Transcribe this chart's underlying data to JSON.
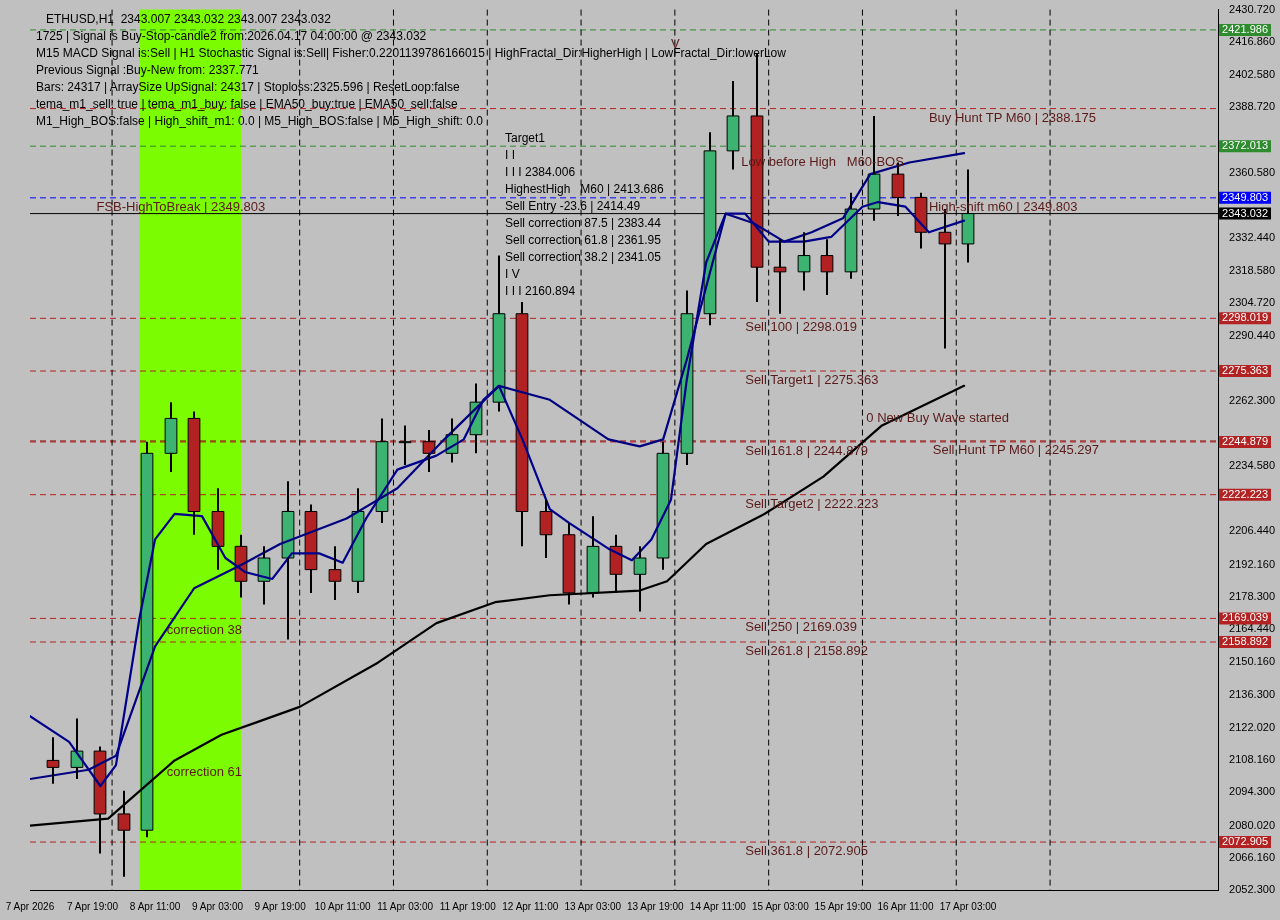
{
  "chart_data": {
    "type": "candlestick",
    "title": "ETHUSD,H1  2343.007 2343.032 2343.007 2343.032",
    "annotations": [
      "1725 | Signal is Buy-Stop-candle2 from:2026.04.17 04:00:00 @ 2343.032",
      "M15 MACD Signal is:Sell | H1 Stochastic Signal is:Sell| Fisher:0.2201139786166015 | HighFractal_Dir:HigherHigh | LowFractal_Dir:lowerLow",
      "Previous Signal :Buy-New from: 2337.771",
      "Bars: 24317 | ArraySize UpSignal: 24317 | Stoploss:2325.596 | ResetLoop:false",
      "tema_m1_sell: true | tema_m1_buy: false | EMA50_buy:true | EMA50_sell:false",
      "M1_High_BOS:false | High_shift_m1: 0.0 | M5_High_BOS:false | M5_High_shift: 0.0",
      "Target1",
      {
        "text": "FSB-HighToBreak | 2349.803",
        "x": "2026-04-07T20:00",
        "y": 2349.803
      },
      "I I",
      {
        "text": "V",
        "x": "2026-04-13T23:00",
        "y": 2420
      },
      "I I I 2384.006",
      "HighestHigh   M60 | 2413.686",
      "Sell Entry -23.6 | 2414.49",
      {
        "text": "Buy Hunt TP M60 | 2388.175",
        "x": "2026-04-16T17:00",
        "y": 2388.175
      },
      "Sell correction 87.5 | 2383.44",
      {
        "text": "Low before High   M60-BOS",
        "x": "2026-04-14T17:00",
        "y": 2369
      },
      "Sell correction 61.8 | 2361.95",
      {
        "text": "High-shift m60 | 2349.803",
        "x": "2026-04-16T17:00",
        "y": 2349.803
      },
      "Sell correction 38.2 | 2341.05",
      {
        "text": "Sell 100 | 2298.019",
        "x": "2026-04-14T18:00",
        "y": 2298.019
      },
      {
        "text": "Sell Target1 | 2275.363",
        "x": "2026-04-14T18:00",
        "y": 2275.363
      },
      {
        "text": "0 New Buy Wave started",
        "x": "2026-04-16T01:00",
        "y": 2259
      },
      {
        "text": "Sell Hunt TP M60 | 2245.297",
        "x": "2026-04-16T18:00",
        "y": 2245.297
      },
      {
        "text": "Sell 161.8 | 2244.879",
        "x": "2026-04-14T18:00",
        "y": 2244.879
      },
      {
        "text": "Sell Target2 | 2222.223",
        "x": "2026-04-14T18:00",
        "y": 2222.223
      },
      {
        "text": "correction 38",
        "x": "2026-04-08T14:00",
        "y": 2168
      },
      {
        "text": "Sell 250 | 2169.039",
        "x": "2026-04-14T18:00",
        "y": 2169.039
      },
      {
        "text": "Sell 261.8 | 2158.892",
        "x": "2026-04-14T18:00",
        "y": 2158.892
      },
      "I V",
      "I I I 2160.894",
      {
        "text": "correction 61",
        "x": "2026-04-08T14:00",
        "y": 2107
      },
      {
        "text": "Sell 361.8 | 2072.905",
        "x": "2026-04-14T18:00",
        "y": 2072.905
      }
    ],
    "x": [
      "2026-04-07T09:00",
      "2026-04-07T15:00",
      "2026-04-07T21:00",
      "2026-04-08T03:00",
      "2026-04-08T09:00",
      "2026-04-08T15:00",
      "2026-04-08T21:00",
      "2026-04-09T03:00",
      "2026-04-09T09:00",
      "2026-04-09T15:00",
      "2026-04-09T21:00",
      "2026-04-10T03:00",
      "2026-04-10T09:00",
      "2026-04-10T15:00",
      "2026-04-10T21:00",
      "2026-04-11T03:00",
      "2026-04-11T09:00",
      "2026-04-11T15:00",
      "2026-04-11T21:00",
      "2026-04-12T03:00",
      "2026-04-12T09:00",
      "2026-04-12T15:00",
      "2026-04-12T21:00",
      "2026-04-13T03:00",
      "2026-04-13T09:00",
      "2026-04-13T15:00",
      "2026-04-13T21:00",
      "2026-04-14T03:00",
      "2026-04-14T09:00",
      "2026-04-14T15:00",
      "2026-04-14T21:00",
      "2026-04-15T03:00",
      "2026-04-15T09:00",
      "2026-04-15T15:00",
      "2026-04-15T21:00",
      "2026-04-16T03:00",
      "2026-04-16T09:00",
      "2026-04-16T15:00",
      "2026-04-16T21:00",
      "2026-04-17T03:00"
    ],
    "ohlc": [
      [
        2108,
        2118,
        2098,
        2105
      ],
      [
        2105,
        2126,
        2100,
        2112
      ],
      [
        2112,
        2114,
        2068,
        2085
      ],
      [
        2085,
        2095,
        2058,
        2078
      ],
      [
        2078,
        2245,
        2075,
        2240
      ],
      [
        2240,
        2262,
        2232,
        2255
      ],
      [
        2255,
        2258,
        2205,
        2215
      ],
      [
        2215,
        2225,
        2190,
        2200
      ],
      [
        2200,
        2205,
        2178,
        2185
      ],
      [
        2185,
        2200,
        2175,
        2195
      ],
      [
        2195,
        2228,
        2160,
        2215
      ],
      [
        2215,
        2218,
        2180,
        2190
      ],
      [
        2190,
        2200,
        2177,
        2185
      ],
      [
        2185,
        2225,
        2180,
        2215
      ],
      [
        2215,
        2255,
        2210,
        2245
      ],
      [
        2245,
        2252,
        2235,
        2245
      ],
      [
        2245,
        2250,
        2232,
        2240
      ],
      [
        2240,
        2255,
        2236,
        2248
      ],
      [
        2248,
        2270,
        2240,
        2262
      ],
      [
        2262,
        2325,
        2258,
        2300
      ],
      [
        2300,
        2305,
        2200,
        2215
      ],
      [
        2215,
        2220,
        2195,
        2205
      ],
      [
        2205,
        2210,
        2175,
        2180
      ],
      [
        2180,
        2213,
        2178,
        2200
      ],
      [
        2200,
        2205,
        2180,
        2188
      ],
      [
        2188,
        2200,
        2172,
        2195
      ],
      [
        2195,
        2245,
        2190,
        2240
      ],
      [
        2240,
        2310,
        2235,
        2300
      ],
      [
        2300,
        2378,
        2295,
        2370
      ],
      [
        2370,
        2400,
        2362,
        2385
      ],
      [
        2385,
        2412,
        2305,
        2320
      ],
      [
        2320,
        2332,
        2300,
        2318
      ],
      [
        2318,
        2335,
        2310,
        2325
      ],
      [
        2325,
        2332,
        2308,
        2318
      ],
      [
        2318,
        2352,
        2315,
        2345
      ],
      [
        2345,
        2385,
        2340,
        2360
      ],
      [
        2360,
        2365,
        2342,
        2350
      ],
      [
        2350,
        2352,
        2328,
        2335
      ],
      [
        2335,
        2345,
        2285,
        2330
      ],
      [
        2330,
        2362,
        2322,
        2343.032
      ]
    ],
    "series": [
      {
        "type": "line",
        "color": "#000000",
        "x": [
          "2026-04-07T03:00",
          "2026-04-07T23:00",
          "2026-04-08T16:00",
          "2026-04-09T04:00",
          "2026-04-10T00:00",
          "2026-04-10T20:00",
          "2026-04-11T11:00",
          "2026-04-12T02:00",
          "2026-04-12T16:00",
          "2026-04-13T15:00",
          "2026-04-13T22:00",
          "2026-04-14T08:00",
          "2026-04-14T23:00",
          "2026-04-15T14:00",
          "2026-04-16T05:00",
          "2026-04-17T02:00"
        ],
        "values": [
          2080,
          2083,
          2108,
          2119,
          2131,
          2150,
          2167,
          2176,
          2179,
          2181,
          2185,
          2201,
          2214,
          2230,
          2252,
          2269
        ]
      },
      {
        "type": "line",
        "color": "#00008b",
        "x": [
          "2026-04-07T03:00",
          "2026-04-07T13:00",
          "2026-04-07T21:00",
          "2026-04-08T01:00",
          "2026-04-08T07:00",
          "2026-04-08T11:00",
          "2026-04-08T16:00",
          "2026-04-08T23:00",
          "2026-04-09T05:00",
          "2026-04-09T10:00",
          "2026-04-09T17:00",
          "2026-04-09T22:00",
          "2026-04-10T05:00",
          "2026-04-10T11:00",
          "2026-04-10T17:00",
          "2026-04-11T01:00",
          "2026-04-11T11:00",
          "2026-04-11T18:00",
          "2026-04-11T23:00",
          "2026-04-12T03:00",
          "2026-04-12T09:00",
          "2026-04-12T16:00",
          "2026-04-12T21:00",
          "2026-04-13T07:00",
          "2026-04-13T13:00",
          "2026-04-13T18:00",
          "2026-04-13T23:00",
          "2026-04-14T03:00",
          "2026-04-14T08:00",
          "2026-04-14T13:00",
          "2026-04-14T18:00",
          "2026-04-15T00:00",
          "2026-04-15T09:00",
          "2026-04-15T16:00",
          "2026-04-16T00:00",
          "2026-04-16T04:00",
          "2026-04-16T11:00",
          "2026-04-16T17:00",
          "2026-04-17T02:00"
        ],
        "values": [
          2127,
          2116,
          2097,
          2106,
          2169,
          2203,
          2214,
          2213,
          2195,
          2189,
          2186,
          2197,
          2197,
          2193,
          2212,
          2233,
          2239,
          2246,
          2263,
          2269,
          2246,
          2216,
          2210,
          2199,
          2194,
          2203,
          2220,
          2271,
          2322,
          2343,
          2343,
          2331,
          2331,
          2333,
          2346,
          2348,
          2346,
          2335,
          2340
        ]
      },
      {
        "type": "line",
        "color": "#000080",
        "x": [
          "2026-04-07T03:00",
          "2026-04-07T18:00",
          "2026-04-08T01:00",
          "2026-04-08T11:00",
          "2026-04-08T21:00",
          "2026-04-09T09:00",
          "2026-04-09T19:00",
          "2026-04-10T12:00",
          "2026-04-11T01:00",
          "2026-04-11T13:00",
          "2026-04-12T03:00",
          "2026-04-12T16:00",
          "2026-04-13T07:00",
          "2026-04-13T15:00",
          "2026-04-13T21:00",
          "2026-04-14T03:00",
          "2026-04-14T13:00",
          "2026-04-14T20:00",
          "2026-04-15T04:00",
          "2026-04-15T11:00",
          "2026-04-15T19:00",
          "2026-04-16T02:00",
          "2026-04-16T12:00",
          "2026-04-17T02:00"
        ],
        "values": [
          2100,
          2104,
          2110,
          2157,
          2182,
          2192,
          2201,
          2212,
          2225,
          2246,
          2269,
          2263,
          2246,
          2243,
          2246,
          2280,
          2343,
          2339,
          2331,
          2335,
          2341,
          2360,
          2365,
          2369
        ]
      }
    ],
    "xlim": [
      "2026-04-07T03:00",
      "2026-04-19T19:00"
    ],
    "xticks": [
      {
        "value": "2026-04-07T03:00",
        "label": "7 Apr 2026"
      },
      {
        "value": "2026-04-07T19:00",
        "label": "7 Apr 19:00"
      },
      {
        "value": "2026-04-08T11:00",
        "label": "8 Apr 11:00"
      },
      {
        "value": "2026-04-09T03:00",
        "label": "9 Apr 03:00"
      },
      {
        "value": "2026-04-09T19:00",
        "label": "9 Apr 19:00"
      },
      {
        "value": "2026-04-10T11:00",
        "label": "10 Apr 11:00"
      },
      {
        "value": "2026-04-11T03:00",
        "label": "11 Apr 03:00"
      },
      {
        "value": "2026-04-11T19:00",
        "label": "11 Apr 19:00"
      },
      {
        "value": "2026-04-12T11:00",
        "label": "12 Apr 11:00"
      },
      {
        "value": "2026-04-13T03:00",
        "label": "13 Apr 03:00"
      },
      {
        "value": "2026-04-13T19:00",
        "label": "13 Apr 19:00"
      },
      {
        "value": "2026-04-14T11:00",
        "label": "14 Apr 11:00"
      },
      {
        "value": "2026-04-15T03:00",
        "label": "15 Apr 03:00"
      },
      {
        "value": "2026-04-15T19:00",
        "label": "15 Apr 19:00"
      },
      {
        "value": "2026-04-16T11:00",
        "label": "16 Apr 11:00"
      },
      {
        "value": "2026-04-17T03:00",
        "label": "17 Apr 03:00"
      }
    ],
    "ylim": [
      2052.3,
      2430.72
    ],
    "yticks": [
      {
        "value": 2052.3,
        "label": "2052.300"
      },
      {
        "value": 2066.16,
        "label": "2066.160"
      },
      {
        "value": 2080.02,
        "label": "2080.020"
      },
      {
        "value": 2094.3,
        "label": "2094.300"
      },
      {
        "value": 2108.16,
        "label": "2108.160"
      },
      {
        "value": 2122.02,
        "label": "2122.020"
      },
      {
        "value": 2136.3,
        "label": "2136.300"
      },
      {
        "value": 2150.16,
        "label": "2150.160"
      },
      {
        "value": 2164.44,
        "label": "2164.440"
      },
      {
        "value": 2178.3,
        "label": "2178.300"
      },
      {
        "value": 2192.16,
        "label": "2192.160"
      },
      {
        "value": 2206.44,
        "label": "2206.440"
      },
      {
        "value": 2234.58,
        "label": "2234.580"
      },
      {
        "value": 2262.3,
        "label": "2262.300"
      },
      {
        "value": 2290.44,
        "label": "2290.440"
      },
      {
        "value": 2304.72,
        "label": "2304.720"
      },
      {
        "value": 2318.58,
        "label": "2318.580"
      },
      {
        "value": 2332.44,
        "label": "2332.440"
      },
      {
        "value": 2360.58,
        "label": "2360.580"
      },
      {
        "value": 2388.72,
        "label": "2388.720"
      },
      {
        "value": 2402.58,
        "label": "2402.580"
      },
      {
        "value": 2416.86,
        "label": "2416.860"
      },
      {
        "value": 2430.72,
        "label": "2430.720"
      }
    ],
    "bands": [
      {
        "axis": "x",
        "from": "2026-04-08T07:00",
        "to": "2026-04-09T09:00",
        "color": "#7cfc00"
      }
    ],
    "ref_lines": [
      {
        "axis": "y",
        "value": 2421.986,
        "label": "2421.986",
        "color": "#2e8b2e",
        "line_style": "dashed"
      },
      {
        "axis": "y",
        "value": 2388.175,
        "color": "#b22222",
        "line_style": "dashed"
      },
      {
        "axis": "y",
        "value": 2372.013,
        "label": "2372.013",
        "color": "#2e8b2e",
        "line_style": "dashed"
      },
      {
        "axis": "y",
        "value": 2349.803,
        "label": "2349.803",
        "color": "#0000ff",
        "line_style": "dashed"
      },
      {
        "axis": "y",
        "value": 2343.032,
        "label": "2343.032",
        "color": "#000000",
        "line_style": "solid"
      },
      {
        "axis": "y",
        "value": 2298.019,
        "label": "2298.019",
        "color": "#b22222",
        "line_style": "dashed"
      },
      {
        "axis": "y",
        "value": 2275.363,
        "label": "2275.363",
        "color": "#b22222",
        "line_style": "dashed"
      },
      {
        "axis": "y",
        "value": 2245.297,
        "color": "#8b0000",
        "line_style": "dashed"
      },
      {
        "axis": "y",
        "value": 2244.879,
        "label": "2244.879",
        "color": "#b22222",
        "line_style": "dashed"
      },
      {
        "axis": "y",
        "value": 2222.223,
        "label": "2222.223",
        "color": "#b22222",
        "line_style": "dashed"
      },
      {
        "axis": "y",
        "value": 2169.039,
        "label": "2169.039",
        "color": "#b22222",
        "line_style": "dashed"
      },
      {
        "axis": "y",
        "value": 2158.892,
        "label": "2158.892",
        "color": "#b22222",
        "line_style": "dashed"
      },
      {
        "axis": "y",
        "value": 2072.905,
        "label": "2072.905",
        "color": "#b22222",
        "line_style": "dashed"
      },
      {
        "axis": "x",
        "value": "2026-04-08T00:00",
        "color": "#000000",
        "line_style": "dashed"
      },
      {
        "axis": "x",
        "value": "2026-04-10T00:00",
        "color": "#000000",
        "line_style": "dashed"
      },
      {
        "axis": "x",
        "value": "2026-04-11T00:00",
        "color": "#000000",
        "line_style": "dashed"
      },
      {
        "axis": "x",
        "value": "2026-04-12T00:00",
        "color": "#000000",
        "line_style": "dashed"
      },
      {
        "axis": "x",
        "value": "2026-04-13T00:00",
        "color": "#000000",
        "line_style": "dashed"
      },
      {
        "axis": "x",
        "value": "2026-04-14T00:00",
        "color": "#000000",
        "line_style": "dashed"
      },
      {
        "axis": "x",
        "value": "2026-04-15T00:00",
        "color": "#000000",
        "line_style": "dashed"
      },
      {
        "axis": "x",
        "value": "2026-04-16T00:00",
        "color": "#000000",
        "line_style": "dashed"
      },
      {
        "axis": "x",
        "value": "2026-04-17T00:00",
        "color": "#000000",
        "line_style": "dashed"
      },
      {
        "axis": "x",
        "value": "2026-04-18T00:00",
        "color": "#000000",
        "line_style": "dashed"
      }
    ]
  }
}
